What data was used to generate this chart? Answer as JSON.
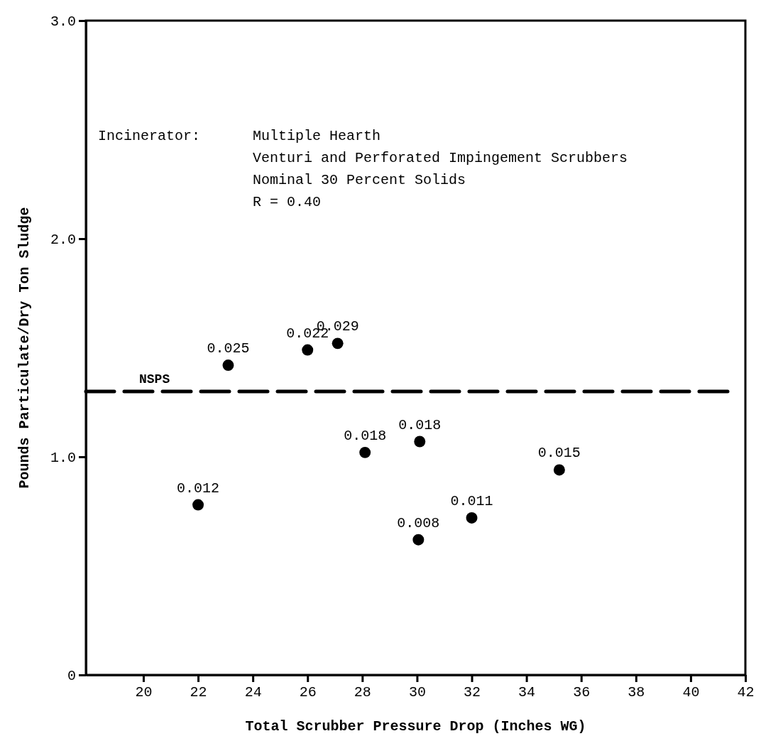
{
  "chart_data": {
    "type": "scatter",
    "xlabel": "Total Scrubber Pressure Drop (Inches WG)",
    "ylabel": "Pounds Particulate/Dry Ton Sludge",
    "x": [
      22.0,
      23.1,
      26.0,
      27.1,
      28.1,
      30.1,
      30.05,
      32.0,
      35.2
    ],
    "values": [
      0.78,
      1.42,
      1.49,
      1.52,
      1.02,
      1.07,
      0.62,
      0.72,
      0.94
    ],
    "color": "#000000",
    "marker": "circle",
    "xlim": [
      17.9,
      42
    ],
    "xticks": [
      20,
      22,
      24,
      26,
      28,
      30,
      32,
      34,
      36,
      38,
      40,
      42
    ],
    "ylim": [
      0,
      3
    ],
    "yticks": [
      0,
      {
        "value": 1,
        "label": "1.0"
      },
      {
        "value": 2,
        "label": "2.0"
      },
      {
        "value": 3,
        "label": "3.0"
      }
    ],
    "grid": false,
    "ref_lines": [
      {
        "axis": "y",
        "value": 1.3,
        "label": "NSPS",
        "line_style": "dashed",
        "color": "#000000"
      }
    ],
    "annotations": [
      "Incinerator:",
      "Multiple Hearth",
      "Venturi and Perforated Impingement Scrubbers",
      "Nominal 30 Percent Solids",
      "R = 0.40",
      {
        "text": "0.012",
        "x": 22.0,
        "y": 0.78
      },
      {
        "text": "0.025",
        "x": 23.1,
        "y": 1.42
      },
      {
        "text": "0.022",
        "x": 26.0,
        "y": 1.49
      },
      {
        "text": "0.029",
        "x": 27.1,
        "y": 1.52
      },
      {
        "text": "0.018",
        "x": 28.1,
        "y": 1.02
      },
      {
        "text": "0.018",
        "x": 30.1,
        "y": 1.07
      },
      {
        "text": "0.008",
        "x": 30.05,
        "y": 0.62
      },
      {
        "text": "0.011",
        "x": 32.0,
        "y": 0.72
      },
      {
        "text": "0.015",
        "x": 35.2,
        "y": 0.94
      }
    ]
  }
}
